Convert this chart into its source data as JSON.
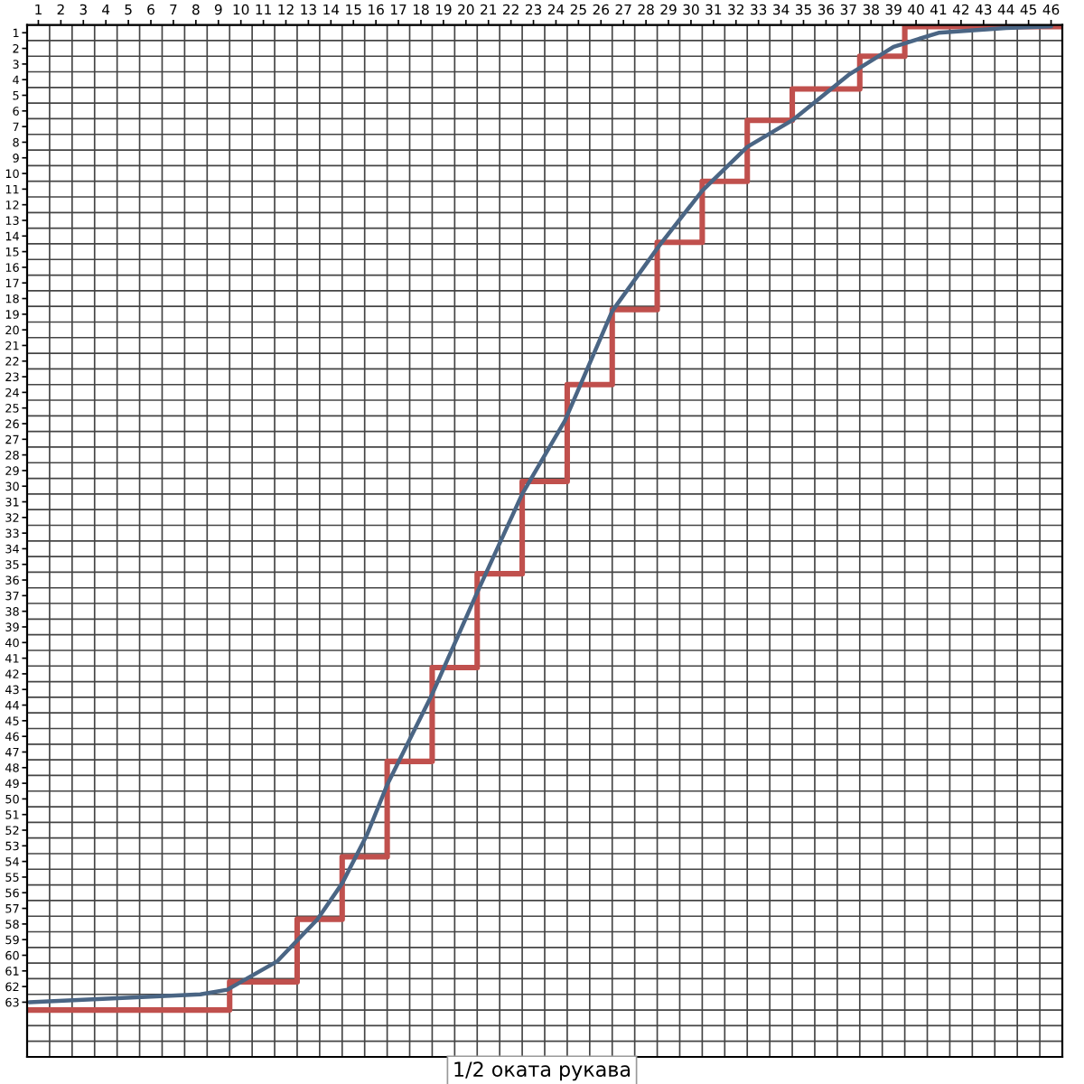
{
  "chart_data": {
    "type": "line",
    "title": "1/2 оката рукава",
    "xlim": [
      0.5,
      46.5
    ],
    "ylim": [
      66.5,
      0.5
    ],
    "grid": true,
    "xticks": [
      1,
      2,
      3,
      4,
      5,
      6,
      7,
      8,
      9,
      10,
      11,
      12,
      13,
      14,
      15,
      16,
      17,
      18,
      19,
      20,
      21,
      22,
      23,
      24,
      25,
      26,
      27,
      28,
      29,
      30,
      31,
      32,
      33,
      34,
      35,
      36,
      37,
      38,
      39,
      40,
      41,
      42,
      43,
      44,
      45,
      46
    ],
    "yticks": [
      1,
      2,
      3,
      4,
      5,
      6,
      7,
      8,
      9,
      10,
      11,
      12,
      13,
      14,
      15,
      16,
      17,
      18,
      19,
      20,
      21,
      22,
      23,
      24,
      25,
      26,
      27,
      28,
      29,
      30,
      31,
      32,
      33,
      34,
      35,
      36,
      37,
      38,
      39,
      40,
      41,
      42,
      43,
      44,
      45,
      46,
      47,
      48,
      49,
      50,
      51,
      52,
      53,
      54,
      55,
      56,
      57,
      58,
      59,
      60,
      61,
      62,
      63
    ],
    "series": [
      {
        "type": "step",
        "color": "#c0504d",
        "x": [
          0.5,
          9.5,
          12.5,
          14.5,
          16.5,
          18.5,
          20.5,
          22.5,
          24.5,
          26.5,
          28.5,
          30.5,
          32.5,
          34.5,
          37.5,
          39.5,
          46.5
        ],
        "values": [
          63.5,
          61.7,
          57.7,
          53.7,
          47.6,
          41.6,
          35.6,
          29.7,
          23.5,
          18.7,
          14.4,
          10.5,
          6.6,
          4.6,
          2.5,
          0.6,
          0.6
        ]
      },
      {
        "type": "line",
        "color": "#4a6584",
        "x": [
          0.6,
          8.2,
          9.4,
          11.6,
          13.4,
          14.5,
          15.6,
          16.5,
          18.5,
          20.5,
          22.5,
          24.4,
          26.5,
          28.6,
          30.5,
          32.5,
          34.5,
          37,
          39,
          41,
          44,
          46
        ],
        "values": [
          63,
          62.5,
          62.2,
          60.4,
          57.7,
          55.4,
          52.3,
          49.1,
          43.3,
          36.8,
          30.5,
          25.8,
          18.8,
          14.6,
          11.1,
          8.3,
          6.6,
          3.7,
          1.9,
          1.0,
          0.7,
          0.6
        ]
      }
    ]
  }
}
